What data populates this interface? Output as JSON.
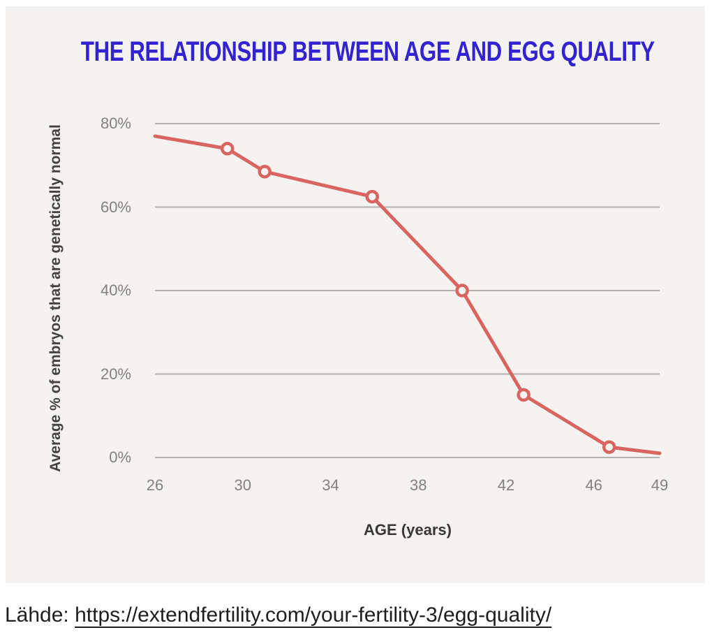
{
  "page": {
    "background": "#ffffff",
    "panel_background": "#f4f3f1"
  },
  "chart": {
    "title": "THE RELATIONSHIP BETWEEN AGE AND EGG QUALITY",
    "title_color": "#3322cf"
  },
  "chart_data": {
    "type": "line",
    "title": "THE RELATIONSHIP BETWEEN AGE AND EGG QUALITY",
    "xlabel": "AGE (years)",
    "ylabel": "Average % of embryos that are genetically normal",
    "xlim": [
      26,
      49
    ],
    "ylim": [
      0,
      80
    ],
    "x_ticks": [
      26,
      30,
      34,
      38,
      42,
      46,
      49
    ],
    "y_ticks": [
      0,
      20,
      40,
      60,
      80
    ],
    "y_tick_suffix": "%",
    "grid": "horizontal",
    "legend": false,
    "line_color": "#d96561",
    "marker_style": "open-circle",
    "marker_fill": "#f6f5f3",
    "points": [
      {
        "age": 26,
        "pct_normal": 77,
        "marker": false
      },
      {
        "age": 29.3,
        "pct_normal": 74,
        "marker": true
      },
      {
        "age": 31,
        "pct_normal": 68.5,
        "marker": true
      },
      {
        "age": 35.9,
        "pct_normal": 62.5,
        "marker": true
      },
      {
        "age": 40,
        "pct_normal": 40,
        "marker": true
      },
      {
        "age": 42.8,
        "pct_normal": 15,
        "marker": true
      },
      {
        "age": 46.7,
        "pct_normal": 2.5,
        "marker": true
      },
      {
        "age": 49,
        "pct_normal": 1,
        "marker": false
      }
    ]
  },
  "source": {
    "label": "Lähde:",
    "url": "https://extendfertility.com/your-fertility-3/egg-quality/"
  }
}
